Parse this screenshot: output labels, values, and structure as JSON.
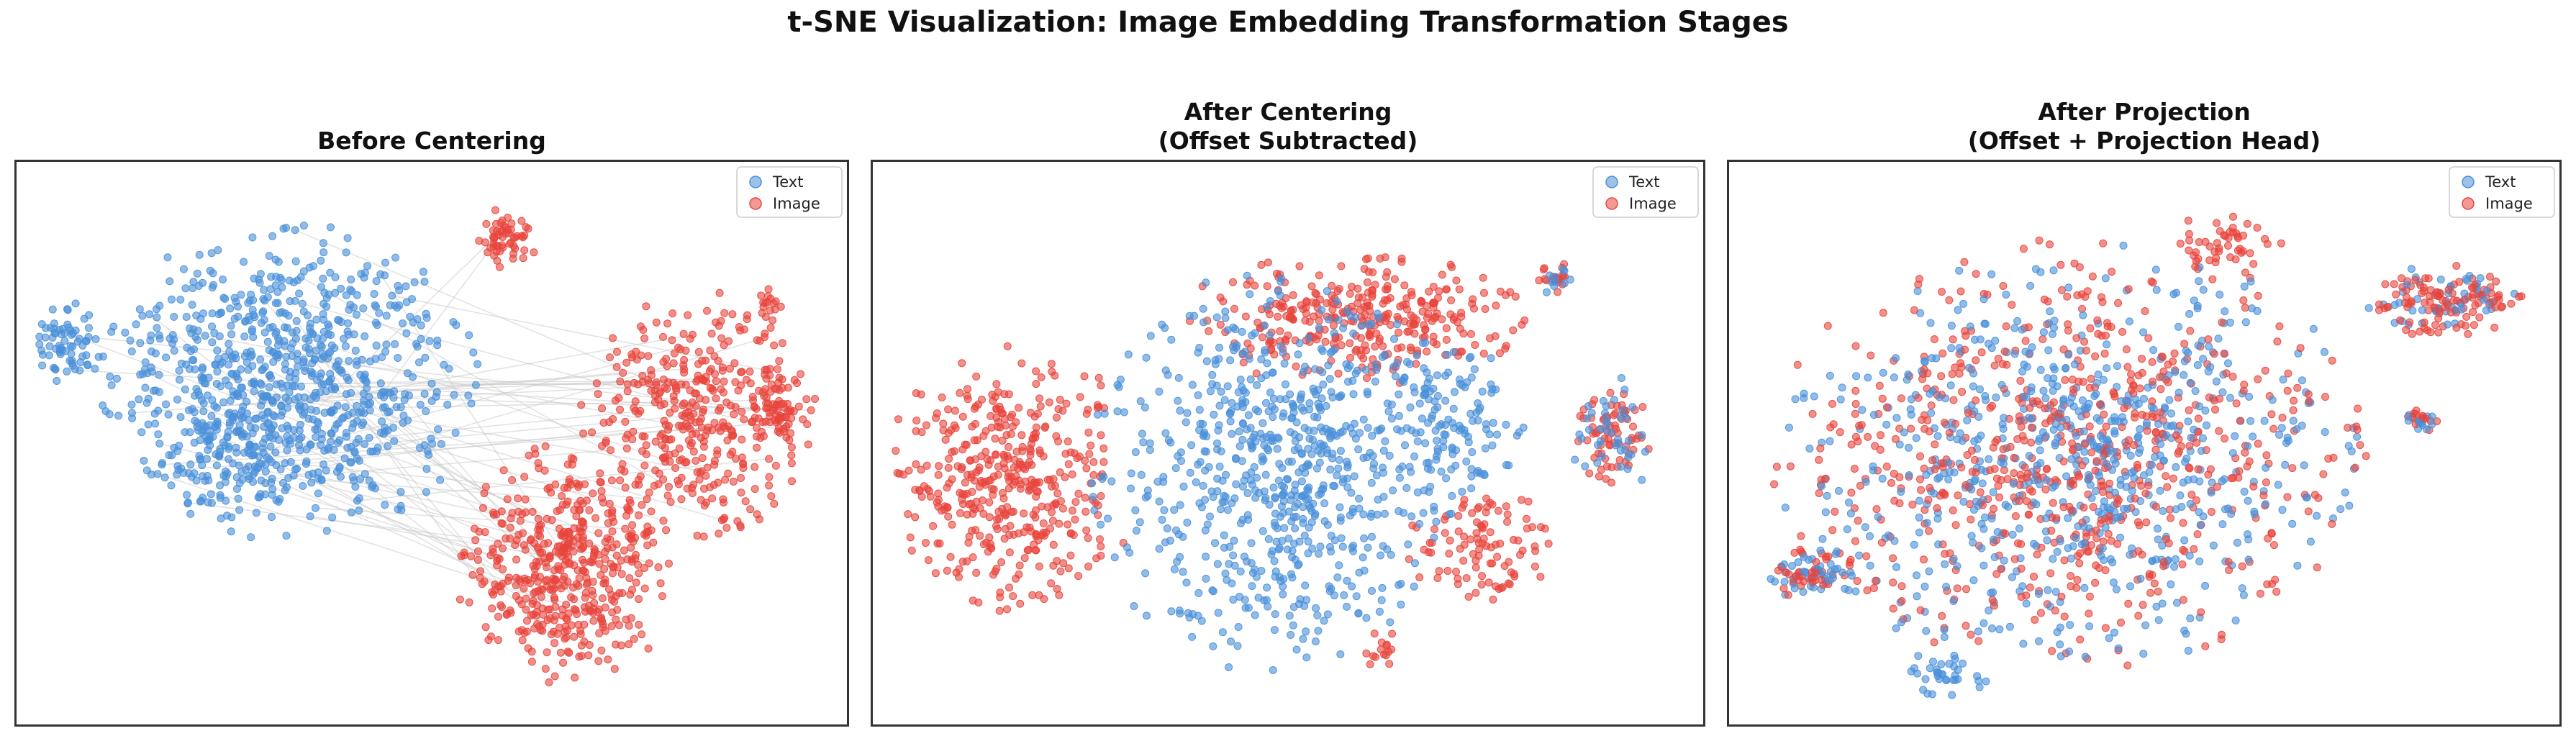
{
  "figure": {
    "title": "t-SNE Visualization: Image Embedding Transformation Stages"
  },
  "colors": {
    "text": "#4a90d9",
    "image": "#e8453c",
    "frame": "#333333",
    "link": "#c8c8c8"
  },
  "chart_data": [
    {
      "type": "scatter",
      "title_line1": "Before Centering",
      "title_line2": "",
      "legend": [
        "Text",
        "Image"
      ],
      "legend_position": "top-right",
      "axes": "hidden",
      "clusters": [
        {
          "series": "Text",
          "cx": 0.33,
          "cy": 0.39,
          "rx": 0.21,
          "ry": 0.26,
          "n": 820
        },
        {
          "series": "Text",
          "cx": 0.065,
          "cy": 0.32,
          "rx": 0.045,
          "ry": 0.07,
          "n": 70
        },
        {
          "series": "Text",
          "cx": 0.25,
          "cy": 0.53,
          "rx": 0.09,
          "ry": 0.1,
          "n": 110
        },
        {
          "series": "Image",
          "cx": 0.59,
          "cy": 0.14,
          "rx": 0.035,
          "ry": 0.05,
          "n": 55
        },
        {
          "series": "Image",
          "cx": 0.82,
          "cy": 0.45,
          "rx": 0.13,
          "ry": 0.2,
          "n": 380
        },
        {
          "series": "Image",
          "cx": 0.66,
          "cy": 0.72,
          "rx": 0.12,
          "ry": 0.2,
          "n": 480
        },
        {
          "series": "Image",
          "cx": 0.92,
          "cy": 0.44,
          "rx": 0.04,
          "ry": 0.07,
          "n": 60
        },
        {
          "series": "Image",
          "cx": 0.905,
          "cy": 0.26,
          "rx": 0.02,
          "ry": 0.03,
          "n": 15
        }
      ],
      "links": 60
    },
    {
      "type": "scatter",
      "title_line1": "After Centering",
      "title_line2": "(Offset Subtracted)",
      "legend": [
        "Text",
        "Image"
      ],
      "legend_position": "top-right",
      "axes": "hidden",
      "clusters": [
        {
          "series": "Text",
          "cx": 0.48,
          "cy": 0.55,
          "rx": 0.2,
          "ry": 0.33,
          "n": 700
        },
        {
          "series": "Image",
          "cx": 0.17,
          "cy": 0.56,
          "rx": 0.14,
          "ry": 0.22,
          "n": 420
        },
        {
          "series": "Image",
          "cx": 0.58,
          "cy": 0.28,
          "rx": 0.19,
          "ry": 0.11,
          "n": 330
        },
        {
          "series": "Image",
          "cx": 0.73,
          "cy": 0.68,
          "rx": 0.08,
          "ry": 0.1,
          "n": 100
        },
        {
          "series": "Text",
          "cx": 0.69,
          "cy": 0.48,
          "rx": 0.09,
          "ry": 0.16,
          "n": 140
        },
        {
          "series": "Image",
          "cx": 0.89,
          "cy": 0.49,
          "rx": 0.045,
          "ry": 0.08,
          "n": 70
        },
        {
          "series": "Text",
          "cx": 0.89,
          "cy": 0.49,
          "rx": 0.05,
          "ry": 0.1,
          "n": 40
        },
        {
          "series": "Image",
          "cx": 0.82,
          "cy": 0.21,
          "rx": 0.02,
          "ry": 0.03,
          "n": 20
        },
        {
          "series": "Text",
          "cx": 0.82,
          "cy": 0.21,
          "rx": 0.02,
          "ry": 0.03,
          "n": 10
        },
        {
          "series": "Image",
          "cx": 0.62,
          "cy": 0.86,
          "rx": 0.03,
          "ry": 0.04,
          "n": 15
        }
      ],
      "links": 0
    },
    {
      "type": "scatter",
      "title_line1": "After Projection",
      "title_line2": "(Offset + Projection Head)",
      "legend": [
        "Text",
        "Image"
      ],
      "legend_position": "top-right",
      "axes": "hidden",
      "clusters": [
        {
          "series": "Text",
          "cx": 0.41,
          "cy": 0.52,
          "rx": 0.33,
          "ry": 0.35,
          "n": 700
        },
        {
          "series": "Image",
          "cx": 0.41,
          "cy": 0.52,
          "rx": 0.33,
          "ry": 0.35,
          "n": 700
        },
        {
          "series": "Image",
          "cx": 0.86,
          "cy": 0.25,
          "rx": 0.09,
          "ry": 0.06,
          "n": 110
        },
        {
          "series": "Text",
          "cx": 0.86,
          "cy": 0.25,
          "rx": 0.09,
          "ry": 0.06,
          "n": 50
        },
        {
          "series": "Text",
          "cx": 0.1,
          "cy": 0.73,
          "rx": 0.05,
          "ry": 0.05,
          "n": 45
        },
        {
          "series": "Image",
          "cx": 0.1,
          "cy": 0.73,
          "rx": 0.05,
          "ry": 0.05,
          "n": 40
        },
        {
          "series": "Text",
          "cx": 0.26,
          "cy": 0.91,
          "rx": 0.05,
          "ry": 0.04,
          "n": 35
        },
        {
          "series": "Image",
          "cx": 0.6,
          "cy": 0.15,
          "rx": 0.06,
          "ry": 0.06,
          "n": 50
        },
        {
          "series": "Image",
          "cx": 0.83,
          "cy": 0.46,
          "rx": 0.02,
          "ry": 0.03,
          "n": 15
        },
        {
          "series": "Text",
          "cx": 0.83,
          "cy": 0.46,
          "rx": 0.02,
          "ry": 0.03,
          "n": 12
        }
      ],
      "links": 0
    }
  ]
}
